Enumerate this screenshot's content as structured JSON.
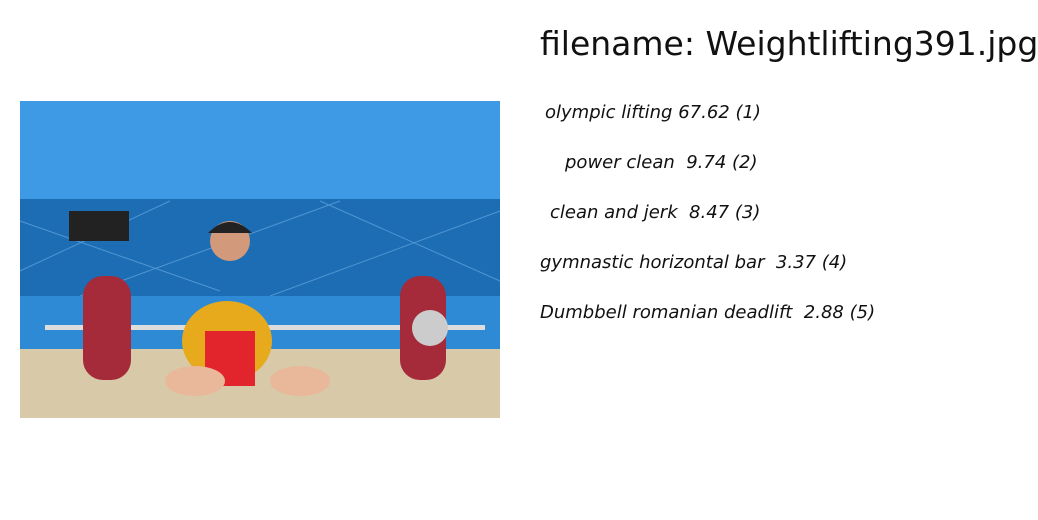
{
  "header": {
    "filename": "filename: Weightlifting391.jpg"
  },
  "predictions": [
    "olympic lifting 67.62 (1)",
    "power clean  9.74 (2)",
    "clean and jerk  8.47 (3)",
    "gymnastic horizontal bar  3.37 (4)",
    "Dumbbell romanian deadlift  2.88 (5)"
  ]
}
